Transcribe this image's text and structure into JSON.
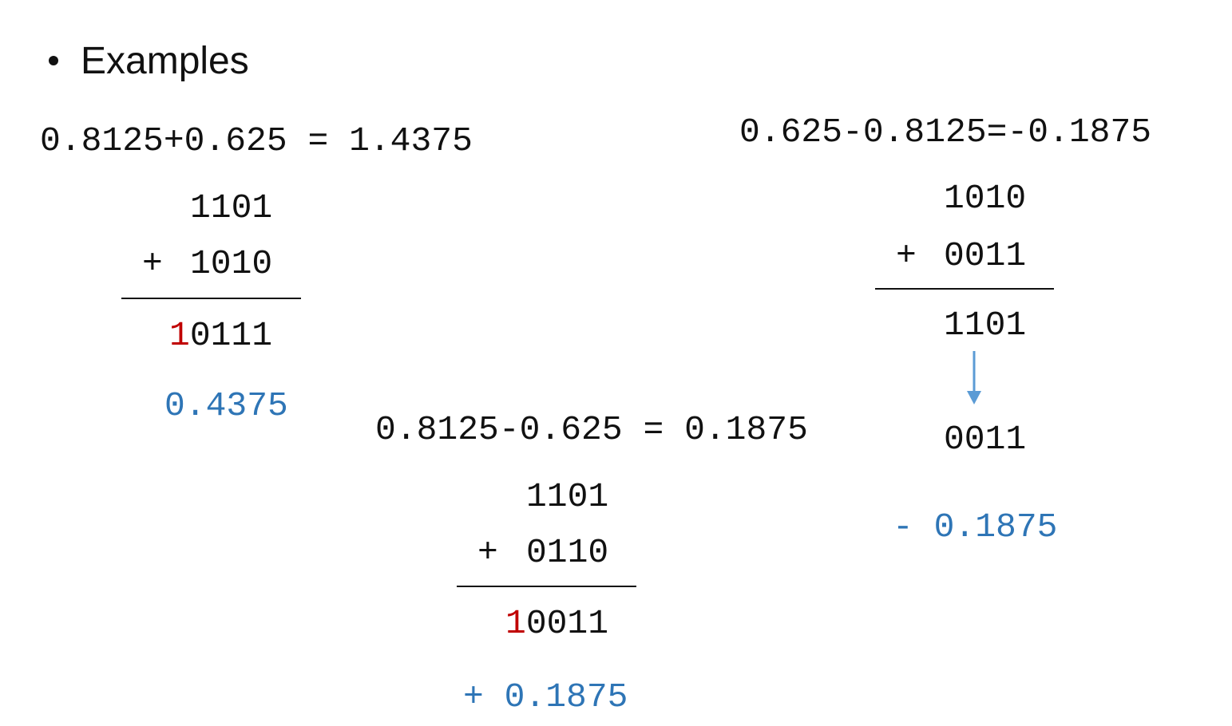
{
  "heading": "Examples",
  "examples": [
    {
      "equation": "0.8125+0.625 = 1.4375",
      "operand1": "1101",
      "operator": "+",
      "operand2": "1010",
      "result_carry": "1",
      "result_rest": "0111",
      "interpretation": "0.4375"
    },
    {
      "equation": "0.8125-0.625 = 0.1875",
      "operand1": "1101",
      "operator": "+",
      "operand2": "0110",
      "result_carry": "1",
      "result_rest": "0011",
      "interpretation": "+ 0.1875"
    },
    {
      "equation": "0.625-0.8125=-0.1875",
      "operand1": "1010",
      "operator": "+",
      "operand2": "0011",
      "result": "1101",
      "complement": "0011",
      "interpretation": "- 0.1875"
    }
  ]
}
